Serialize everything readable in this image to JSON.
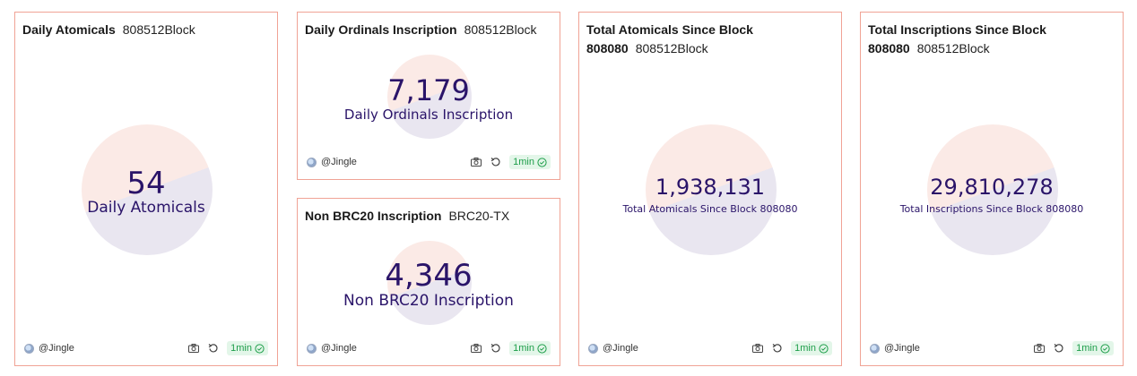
{
  "cards": [
    {
      "title": "Daily Atomicals",
      "subtitle": "808512Block",
      "value": "54",
      "label": "Daily Atomicals",
      "author": "@Jingle",
      "refresh": "1min"
    },
    {
      "title": "Daily Ordinals Inscription",
      "subtitle": "808512Block",
      "value": "7,179",
      "label": "Daily Ordinals Inscription",
      "author": "@Jingle",
      "refresh": "1min"
    },
    {
      "title": "Non BRC20 Inscription",
      "subtitle": "BRC20-TX",
      "value": "4,346",
      "label": "Non BRC20 Inscription",
      "author": "@Jingle",
      "refresh": "1min"
    },
    {
      "title": "Total Atomicals Since Block",
      "title_line2": "808080",
      "subtitle": "808512Block",
      "value": "1,938,131",
      "label": "Total Atomicals Since Block 808080",
      "author": "@Jingle",
      "refresh": "1min"
    },
    {
      "title": "Total Inscriptions Since Block",
      "title_line2": "808080",
      "subtitle": "808512Block",
      "value": "29,810,278",
      "label": "Total Inscriptions Since Block 808080",
      "author": "@Jingle",
      "refresh": "1min"
    }
  ],
  "icons": {
    "camera": "camera-icon",
    "refresh": "refresh-icon",
    "check": "check-circle-icon",
    "avatar": "avatar"
  },
  "colors": {
    "border": "#f0a395",
    "value": "#2a1469",
    "badge_bg": "#e3f6e9",
    "badge_text": "#1e9e4a"
  }
}
